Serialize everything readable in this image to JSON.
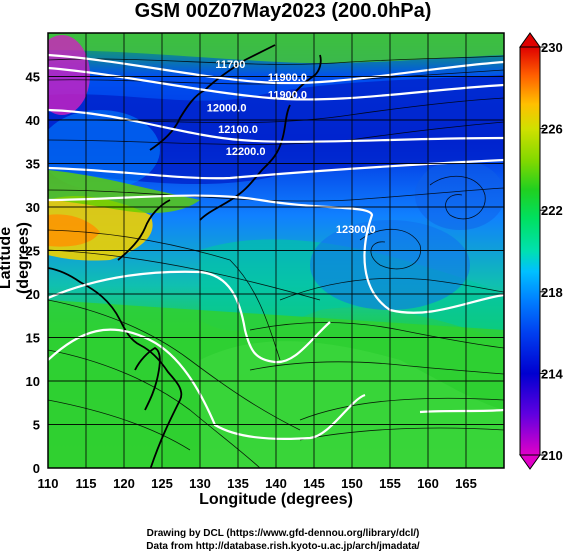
{
  "title": "GSM 00Z07May2023 (200.0hPa)",
  "xlabel": "Longitude (degrees)",
  "ylabel": "Latitude  (degrees)",
  "credits": {
    "line1": "Drawing by DCL (https://www.gfd-dennou.org/library/dcl/)",
    "line2": "Data from http://database.rish.kyoto-u.ac.jp/arch/jmadata/"
  },
  "map": {
    "lon_range": [
      110,
      170
    ],
    "lat_range": [
      0,
      50
    ],
    "lon_ticks": [
      "110",
      "115",
      "120",
      "125",
      "130",
      "135",
      "140",
      "145",
      "150",
      "155",
      "160",
      "165"
    ],
    "lat_ticks": [
      "0",
      "5",
      "10",
      "15",
      "20",
      "25",
      "30",
      "35",
      "40",
      "45"
    ],
    "grid": true,
    "coastline_color": "#000000",
    "contours": [
      {
        "label": "11900.0",
        "label_lon": 141.5,
        "label_lat": 42.5
      },
      {
        "label": "11900.0",
        "label_lon": 141.5,
        "label_lat": 44.5
      },
      {
        "label": "12000.0",
        "label_lon": 133.5,
        "label_lat": 41
      },
      {
        "label": "12100.0",
        "label_lon": 135,
        "label_lat": 38.5
      },
      {
        "label": "12200.0",
        "label_lon": 136,
        "label_lat": 36
      },
      {
        "label": "12300.0",
        "label_lon": 150.5,
        "label_lat": 27
      },
      {
        "label": "11700",
        "label_lon": 134,
        "label_lat": 46
      }
    ]
  },
  "colorbar": {
    "ticks": [
      "230",
      "226",
      "222",
      "218",
      "214",
      "210"
    ],
    "min": 210,
    "max": 230,
    "colors": [
      "#e000c8",
      "#6000e0",
      "#0000d0",
      "#0040f0",
      "#0080ff",
      "#00c0ff",
      "#00e0c0",
      "#00e060",
      "#20d020",
      "#80d800",
      "#d0e000",
      "#ffc000",
      "#ff6000",
      "#e00000"
    ]
  }
}
